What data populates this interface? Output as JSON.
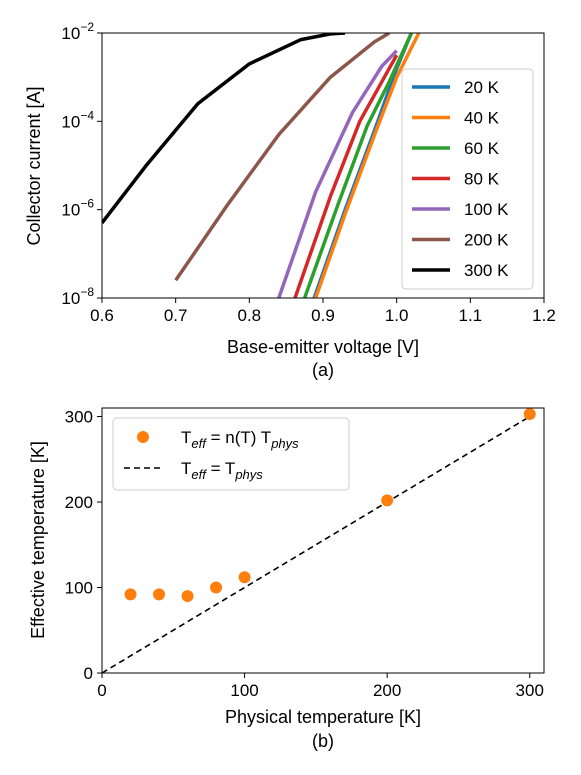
{
  "chart_data": [
    {
      "type": "line",
      "caption": "(a)",
      "xlabel": "Base-emitter voltage [V]",
      "ylabel": "Collector current [A]",
      "xlim": [
        0.6,
        1.2
      ],
      "ylim_log10": [
        -8,
        -2
      ],
      "yscale": "log",
      "x_ticks": [
        0.6,
        0.7,
        0.8,
        0.9,
        1.0,
        1.1,
        1.2
      ],
      "x_tick_labels": [
        "0.6",
        "0.7",
        "0.8",
        "0.9",
        "1.0",
        "1.1",
        "1.2"
      ],
      "y_ticks": [
        {
          "value": -8,
          "base": "10",
          "exp": "−8"
        },
        {
          "value": -6,
          "base": "10",
          "exp": "−6"
        },
        {
          "value": -4,
          "base": "10",
          "exp": "−4"
        },
        {
          "value": -2,
          "base": "10",
          "exp": "−2"
        }
      ],
      "legend_position": "right",
      "series": [
        {
          "name": "20 K",
          "color": "#1f77b4",
          "x": [
            0.888,
            0.93,
            0.97,
            1.0,
            1.02
          ],
          "log10_y": [
            -8,
            -6,
            -4.2,
            -2.8,
            -2
          ]
        },
        {
          "name": "40 K",
          "color": "#ff7f0e",
          "x": [
            0.89,
            0.93,
            0.97,
            1.0,
            1.03
          ],
          "log10_y": [
            -8,
            -6.1,
            -4.3,
            -3,
            -2
          ]
        },
        {
          "name": "60 K",
          "color": "#2ca02c",
          "x": [
            0.875,
            0.92,
            0.96,
            0.99,
            1.02
          ],
          "log10_y": [
            -8,
            -5.9,
            -4.1,
            -3.1,
            -2
          ]
        },
        {
          "name": "80 K",
          "color": "#d62728",
          "x": [
            0.862,
            0.91,
            0.95,
            0.99,
            1.0
          ],
          "log10_y": [
            -8,
            -5.7,
            -4,
            -2.8,
            -2.5
          ]
        },
        {
          "name": "100 K",
          "color": "#9467bd",
          "x": [
            0.84,
            0.89,
            0.94,
            0.98,
            1.0
          ],
          "log10_y": [
            -8,
            -5.6,
            -3.8,
            -2.75,
            -2.4
          ]
        },
        {
          "name": "200 K",
          "color": "#8c564b",
          "x": [
            0.7,
            0.77,
            0.84,
            0.91,
            0.97,
            0.99
          ],
          "log10_y": [
            -7.6,
            -5.9,
            -4.3,
            -3.0,
            -2.2,
            -2
          ]
        },
        {
          "name": "300 K",
          "color": "#000000",
          "x": [
            0.6,
            0.66,
            0.73,
            0.8,
            0.87,
            0.91,
            0.93
          ],
          "log10_y": [
            -6.3,
            -5,
            -3.6,
            -2.7,
            -2.15,
            -2.02,
            -2
          ]
        }
      ]
    },
    {
      "type": "scatter",
      "caption": "(b)",
      "xlabel": "Physical temperature [K]",
      "ylabel": "Effective temperature [K]",
      "xlim": [
        0,
        310
      ],
      "ylim": [
        0,
        310
      ],
      "x_ticks": [
        0,
        100,
        200,
        300
      ],
      "y_ticks": [
        0,
        100,
        200,
        300
      ],
      "legend_position": "top-left",
      "series": [
        {
          "legend": {
            "main": "T",
            "sub1": "eff",
            "mid": " = n(T) T",
            "sub2": "phys"
          },
          "color": "#ff7f0e",
          "marker": "circle",
          "x": [
            20,
            40,
            60,
            80,
            100,
            200,
            300
          ],
          "y": [
            92,
            92,
            90,
            100,
            112,
            202,
            303
          ]
        },
        {
          "legend": {
            "main": "T",
            "sub1": "eff",
            "mid": " = T",
            "sub2": "phys"
          },
          "color": "#000000",
          "style": "dashed",
          "x": [
            0,
            300
          ],
          "y": [
            0,
            300
          ]
        }
      ]
    }
  ]
}
